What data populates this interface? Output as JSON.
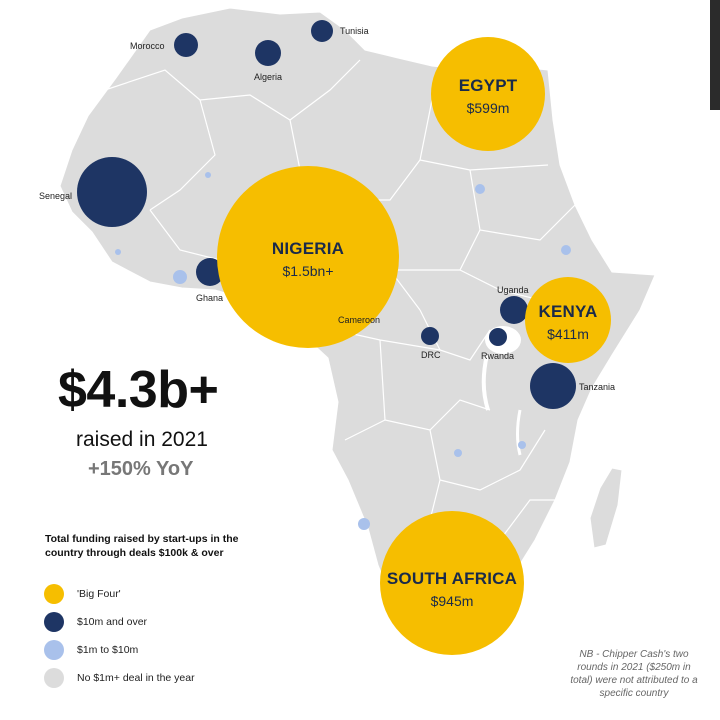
{
  "headline": {
    "amount": "$4.3b+",
    "subtitle": "raised in 2021",
    "growth": "+150% YoY"
  },
  "big_four": [
    {
      "name": "EGYPT",
      "value": "$599m",
      "amount_musd": 599
    },
    {
      "name": "NIGERIA",
      "value": "$1.5bn+",
      "amount_musd": 1500
    },
    {
      "name": "KENYA",
      "value": "$411m",
      "amount_musd": 411
    },
    {
      "name": "SOUTH AFRICA",
      "value": "$945m",
      "amount_musd": 945
    }
  ],
  "over_10m": [
    "Morocco",
    "Algeria",
    "Tunisia",
    "Senegal",
    "Ghana",
    "Cameroon",
    "DRC",
    "Uganda",
    "Rwanda",
    "Tanzania"
  ],
  "legend": {
    "title": "Total funding raised by start-ups in the country through deals $100k & over",
    "items": [
      {
        "label": "'Big Four'",
        "color": "#F6BE00"
      },
      {
        "label": "$10m and over",
        "color": "#1E3564"
      },
      {
        "label": "$1m to $10m",
        "color": "#A9C1EB"
      },
      {
        "label": "No $1m+ deal in the year",
        "color": "#DCDCDC"
      }
    ]
  },
  "footnote": "NB - Chipper Cash's two rounds in 2021 ($250m in total) were not attributed to a specific country",
  "colors": {
    "big_four": "#F6BE00",
    "over_10m": "#1E3564",
    "one_to_ten": "#A9C1EB",
    "land": "#DCDCDC",
    "border": "#FFFFFF"
  }
}
